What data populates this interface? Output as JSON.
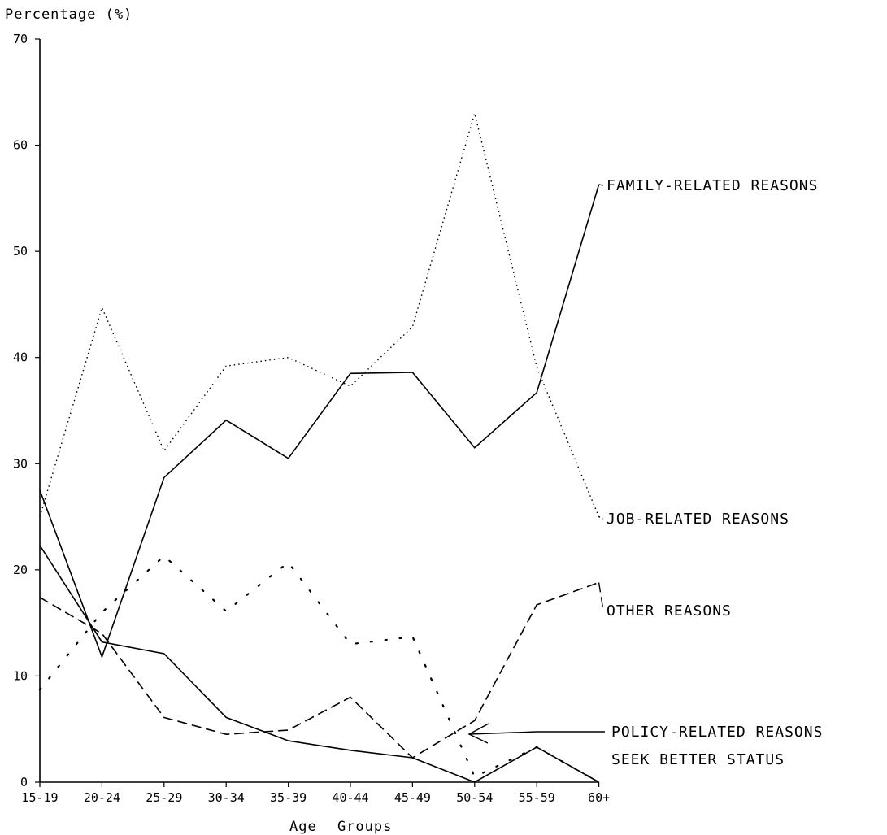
{
  "chart_data": {
    "type": "line",
    "ylabel": "Percentage (%)",
    "xlabel": "Age Groups",
    "ylim": [
      0,
      70
    ],
    "yticks": [
      "0",
      "10",
      "20",
      "30",
      "40",
      "50",
      "60",
      "70"
    ],
    "grid": false,
    "categories": [
      "15-19",
      "20-24",
      "25-29",
      "30-34",
      "35-39",
      "40-44",
      "45-49",
      "50-54",
      "55-59",
      "60+"
    ],
    "series": [
      {
        "name": "FAMILY-RELATED REASONS",
        "style": "solid",
        "values": [
          27.5,
          11.8,
          28.7,
          34.1,
          30.5,
          38.5,
          38.6,
          31.5,
          36.7,
          56.3
        ]
      },
      {
        "name": "JOB-RELATED REASONS",
        "style": "dotted",
        "values": [
          25.0,
          44.7,
          31.2,
          39.2,
          40.0,
          37.3,
          42.9,
          63.0,
          39.1,
          25.0
        ]
      },
      {
        "name": "OTHER REASONS",
        "style": "dashed",
        "values": [
          17.4,
          14.0,
          6.1,
          4.5,
          4.9,
          8.0,
          2.3,
          5.8,
          16.7,
          18.8
        ]
      },
      {
        "name": "POLICY-RELATED REASONS",
        "style": "sparse-dotted",
        "values": [
          8.7,
          16.0,
          21.3,
          16.1,
          20.7,
          13.0,
          13.7,
          0.5,
          3.3,
          0.0
        ]
      },
      {
        "name": "SEEK BETTER STATUS",
        "style": "solid",
        "values": [
          22.3,
          13.2,
          12.1,
          6.1,
          3.9,
          3.0,
          2.3,
          0.0,
          3.3,
          0.0
        ]
      }
    ]
  }
}
